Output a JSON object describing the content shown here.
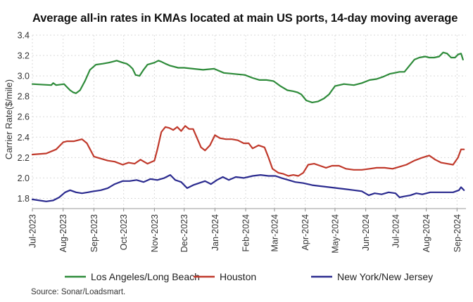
{
  "title": "Average all-in rates in KMAs located at main US ports, 14-day moving average",
  "source": "Source: Sonar/Loadsmart.",
  "chart_data": {
    "type": "line",
    "title": "Average all-in rates in KMAs located at main US ports, 14-day moving average",
    "xlabel": "",
    "ylabel": "Carrier Rate($/mile)",
    "ylim": [
      1.7,
      3.4
    ],
    "yticks": [
      1.8,
      2.0,
      2.2,
      2.4,
      2.6,
      2.8,
      3.0,
      3.2,
      3.4
    ],
    "ytick_labels": [
      "1.8",
      "2.0",
      "2.2",
      "2.4",
      "2.6",
      "2.8",
      "3.0",
      "3.2",
      "3.4"
    ],
    "xlim": [
      "2023-07-01",
      "2024-09-10"
    ],
    "xticks": [
      "2023-07-01",
      "2023-08-01",
      "2023-09-01",
      "2023-10-01",
      "2023-11-01",
      "2023-12-01",
      "2024-01-01",
      "2024-02-01",
      "2024-03-01",
      "2024-04-01",
      "2024-05-01",
      "2024-06-01",
      "2024-07-01",
      "2024-08-01",
      "2024-09-01"
    ],
    "xtick_labels": [
      "Jul-2023",
      "Aug-2023",
      "Sep-2023",
      "Oct-2023",
      "Nov-2023",
      "Dec-2023",
      "Jan-2024",
      "Feb-2024",
      "Mar-2024",
      "Apr-2024",
      "May-2024",
      "Jun-2024",
      "Jul-2024",
      "Aug-2024",
      "Sep-2024"
    ],
    "grid": "both",
    "legend_position": "bottom",
    "series": [
      {
        "name": "Los Angeles/Long Beach",
        "color": "#2e8b3a",
        "x": [
          "2023-07-01",
          "2023-07-20",
          "2023-07-22",
          "2023-07-25",
          "2023-08-02",
          "2023-08-05",
          "2023-08-08",
          "2023-08-11",
          "2023-08-14",
          "2023-08-18",
          "2023-08-23",
          "2023-08-28",
          "2023-09-03",
          "2023-09-10",
          "2023-09-16",
          "2023-09-20",
          "2023-09-24",
          "2023-09-30",
          "2023-10-04",
          "2023-10-07",
          "2023-10-10",
          "2023-10-13",
          "2023-10-17",
          "2023-10-21",
          "2023-10-25",
          "2023-11-01",
          "2023-11-05",
          "2023-11-08",
          "2023-11-12",
          "2023-11-17",
          "2023-11-25",
          "2023-12-01",
          "2023-12-10",
          "2023-12-20",
          "2023-12-31",
          "2024-01-10",
          "2024-01-20",
          "2024-01-31",
          "2024-02-08",
          "2024-02-15",
          "2024-02-22",
          "2024-02-29",
          "2024-03-07",
          "2024-03-14",
          "2024-03-20",
          "2024-03-24",
          "2024-03-28",
          "2024-04-02",
          "2024-04-08",
          "2024-04-14",
          "2024-04-20",
          "2024-04-25",
          "2024-05-01",
          "2024-05-10",
          "2024-05-20",
          "2024-05-28",
          "2024-06-05",
          "2024-06-12",
          "2024-06-18",
          "2024-06-25",
          "2024-06-30",
          "2024-07-05",
          "2024-07-10",
          "2024-07-15",
          "2024-07-20",
          "2024-07-25",
          "2024-07-31",
          "2024-08-04",
          "2024-08-09",
          "2024-08-14",
          "2024-08-18",
          "2024-08-22",
          "2024-08-26",
          "2024-08-30",
          "2024-09-02",
          "2024-09-05",
          "2024-09-07"
        ],
        "values": [
          2.92,
          2.91,
          2.93,
          2.91,
          2.92,
          2.89,
          2.86,
          2.84,
          2.83,
          2.86,
          2.95,
          3.06,
          3.11,
          3.12,
          3.13,
          3.14,
          3.15,
          3.13,
          3.12,
          3.1,
          3.07,
          3.01,
          3.0,
          3.06,
          3.11,
          3.13,
          3.15,
          3.14,
          3.12,
          3.1,
          3.08,
          3.08,
          3.07,
          3.06,
          3.07,
          3.03,
          3.02,
          3.01,
          2.98,
          2.96,
          2.96,
          2.95,
          2.9,
          2.86,
          2.85,
          2.84,
          2.82,
          2.76,
          2.74,
          2.75,
          2.78,
          2.82,
          2.9,
          2.92,
          2.91,
          2.93,
          2.96,
          2.97,
          2.99,
          3.02,
          3.03,
          3.04,
          3.04,
          3.1,
          3.16,
          3.18,
          3.19,
          3.18,
          3.18,
          3.19,
          3.23,
          3.22,
          3.18,
          3.18,
          3.21,
          3.22,
          3.16
        ]
      },
      {
        "name": "Houston",
        "color": "#c0392b",
        "x": [
          "2023-07-01",
          "2023-07-15",
          "2023-07-25",
          "2023-08-01",
          "2023-08-05",
          "2023-08-12",
          "2023-08-20",
          "2023-08-25",
          "2023-09-01",
          "2023-09-08",
          "2023-09-15",
          "2023-09-22",
          "2023-09-30",
          "2023-10-06",
          "2023-10-12",
          "2023-10-18",
          "2023-10-25",
          "2023-11-01",
          "2023-11-04",
          "2023-11-08",
          "2023-11-12",
          "2023-11-16",
          "2023-11-20",
          "2023-11-24",
          "2023-11-28",
          "2023-12-02",
          "2023-12-06",
          "2023-12-10",
          "2023-12-14",
          "2023-12-18",
          "2023-12-22",
          "2023-12-27",
          "2024-01-01",
          "2024-01-06",
          "2024-01-12",
          "2024-01-18",
          "2024-01-24",
          "2024-01-30",
          "2024-02-04",
          "2024-02-08",
          "2024-02-14",
          "2024-02-20",
          "2024-02-24",
          "2024-02-28",
          "2024-03-05",
          "2024-03-10",
          "2024-03-15",
          "2024-03-20",
          "2024-03-25",
          "2024-03-30",
          "2024-04-04",
          "2024-04-10",
          "2024-04-16",
          "2024-04-22",
          "2024-04-28",
          "2024-05-05",
          "2024-05-12",
          "2024-05-20",
          "2024-05-28",
          "2024-06-05",
          "2024-06-12",
          "2024-06-20",
          "2024-06-28",
          "2024-07-05",
          "2024-07-12",
          "2024-07-20",
          "2024-07-28",
          "2024-08-04",
          "2024-08-10",
          "2024-08-16",
          "2024-08-22",
          "2024-08-28",
          "2024-09-02",
          "2024-09-05",
          "2024-09-08"
        ],
        "values": [
          2.23,
          2.24,
          2.28,
          2.35,
          2.36,
          2.36,
          2.38,
          2.34,
          2.21,
          2.19,
          2.17,
          2.16,
          2.13,
          2.15,
          2.14,
          2.18,
          2.14,
          2.17,
          2.28,
          2.45,
          2.5,
          2.49,
          2.47,
          2.5,
          2.46,
          2.51,
          2.48,
          2.48,
          2.39,
          2.3,
          2.27,
          2.32,
          2.42,
          2.39,
          2.38,
          2.38,
          2.37,
          2.34,
          2.34,
          2.29,
          2.32,
          2.3,
          2.2,
          2.09,
          2.05,
          2.04,
          2.02,
          2.03,
          2.02,
          2.05,
          2.13,
          2.14,
          2.12,
          2.1,
          2.12,
          2.12,
          2.09,
          2.08,
          2.08,
          2.09,
          2.1,
          2.1,
          2.09,
          2.11,
          2.13,
          2.17,
          2.2,
          2.22,
          2.18,
          2.15,
          2.14,
          2.13,
          2.2,
          2.28,
          2.28
        ]
      },
      {
        "name": "New York/New Jersey",
        "color": "#2b2b8f",
        "x": [
          "2023-07-01",
          "2023-07-08",
          "2023-07-15",
          "2023-07-22",
          "2023-07-28",
          "2023-08-03",
          "2023-08-08",
          "2023-08-14",
          "2023-08-20",
          "2023-08-26",
          "2023-09-01",
          "2023-09-08",
          "2023-09-15",
          "2023-09-22",
          "2023-09-30",
          "2023-10-07",
          "2023-10-14",
          "2023-10-21",
          "2023-10-28",
          "2023-11-04",
          "2023-11-11",
          "2023-11-17",
          "2023-11-22",
          "2023-11-28",
          "2023-12-04",
          "2023-12-10",
          "2023-12-16",
          "2023-12-22",
          "2023-12-28",
          "2024-01-03",
          "2024-01-09",
          "2024-01-15",
          "2024-01-22",
          "2024-01-30",
          "2024-02-08",
          "2024-02-16",
          "2024-02-24",
          "2024-03-02",
          "2024-03-08",
          "2024-03-15",
          "2024-03-22",
          "2024-03-30",
          "2024-04-08",
          "2024-04-16",
          "2024-04-25",
          "2024-05-03",
          "2024-05-12",
          "2024-05-20",
          "2024-05-28",
          "2024-06-04",
          "2024-06-10",
          "2024-06-17",
          "2024-06-24",
          "2024-07-01",
          "2024-07-05",
          "2024-07-10",
          "2024-07-16",
          "2024-07-22",
          "2024-07-28",
          "2024-08-05",
          "2024-08-12",
          "2024-08-20",
          "2024-08-28",
          "2024-09-03",
          "2024-09-05",
          "2024-09-08"
        ],
        "values": [
          1.79,
          1.78,
          1.77,
          1.78,
          1.81,
          1.86,
          1.88,
          1.86,
          1.85,
          1.86,
          1.87,
          1.88,
          1.9,
          1.94,
          1.97,
          1.97,
          1.98,
          1.96,
          1.99,
          1.98,
          2.0,
          2.03,
          1.98,
          1.96,
          1.9,
          1.93,
          1.95,
          1.97,
          1.94,
          1.98,
          2.01,
          1.98,
          2.01,
          2.0,
          2.02,
          2.03,
          2.02,
          2.02,
          2.0,
          1.98,
          1.96,
          1.95,
          1.93,
          1.92,
          1.91,
          1.9,
          1.89,
          1.88,
          1.87,
          1.83,
          1.85,
          1.84,
          1.86,
          1.85,
          1.81,
          1.82,
          1.83,
          1.85,
          1.84,
          1.86,
          1.86,
          1.86,
          1.86,
          1.88,
          1.91,
          1.88
        ]
      }
    ]
  }
}
